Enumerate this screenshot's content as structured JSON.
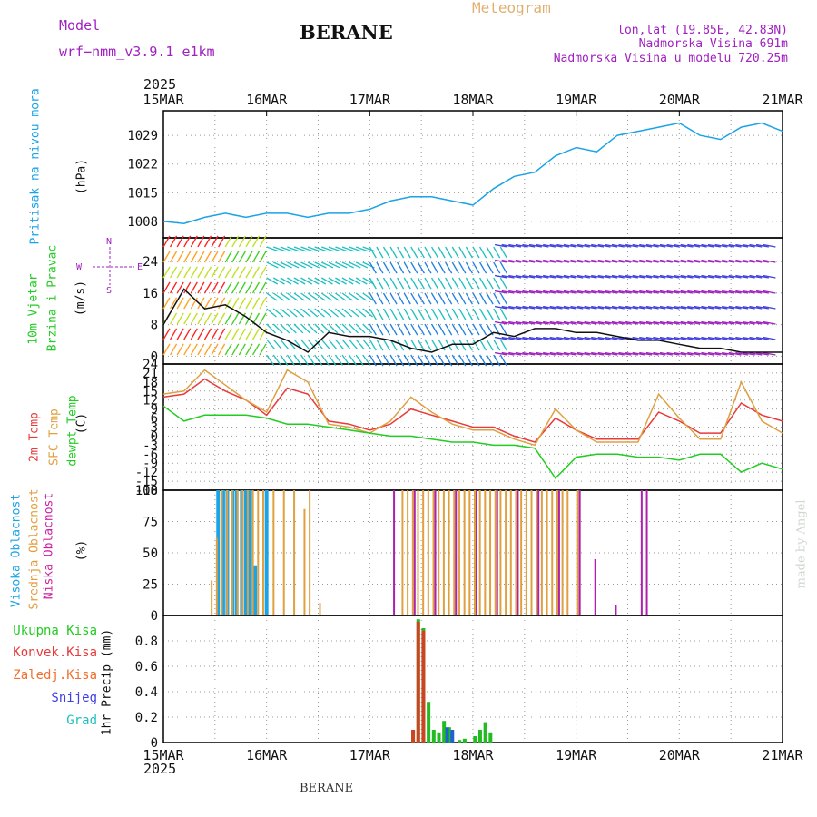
{
  "header": {
    "model_label": "Model",
    "model_name": "wrf−nmm_v3.9.1 e1km",
    "station": "BERANE",
    "meteogram": "Meteogram",
    "lonlat": "lon,lat (19.85E, 42.83N)",
    "elevation": "Nadmorska Visina 691m",
    "model_elevation": "Nadmorska Visina u modelu 720.25m"
  },
  "footer": {
    "station": "BERANE"
  },
  "watermark": "made by Angel",
  "colors": {
    "pressure": "#1aa3e6",
    "temp2m": "#e83a3a",
    "sfc": "#e0a040",
    "dew": "#22cc22",
    "purple": "#a020c0",
    "grid": "#999999"
  },
  "chart_data": [
    {
      "type": "line",
      "title": "Pritisak na nivou mora",
      "ylabel": "(hPa)",
      "year": "2025",
      "categories": [
        "15MAR",
        "16MAR",
        "17MAR",
        "18MAR",
        "19MAR",
        "20MAR",
        "21MAR"
      ],
      "yticks": [
        "1008",
        "1015",
        "1022",
        "1029"
      ],
      "ylim": [
        1004,
        1035
      ],
      "grid": true,
      "series": [
        {
          "name": "Pritisak na nivou mora",
          "x": [
            0,
            0.2,
            0.4,
            0.6,
            0.8,
            1.0,
            1.2,
            1.4,
            1.6,
            1.8,
            2.0,
            2.2,
            2.4,
            2.6,
            2.8,
            3.0,
            3.2,
            3.4,
            3.6,
            3.8,
            4.0,
            4.2,
            4.4,
            4.6,
            4.8,
            5.0,
            5.2,
            5.4,
            5.6,
            5.8,
            6.0
          ],
          "values": [
            1008,
            1007.5,
            1009,
            1010,
            1009,
            1010,
            1010,
            1009,
            1010,
            1010,
            1011,
            1013,
            1014,
            1014,
            1013,
            1012,
            1016,
            1019,
            1020,
            1024,
            1026,
            1025,
            1029,
            1030,
            1031,
            1032,
            1029,
            1028,
            1031,
            1032,
            1030
          ]
        }
      ]
    },
    {
      "type": "line",
      "title": "10m Vjetar Brzina i Pravac",
      "ylabel": "(m/s)",
      "yticks": [
        "0",
        "8",
        "16",
        "24"
      ],
      "ylim": [
        -2,
        30
      ],
      "compass": {
        "n": "N",
        "s": "S",
        "e": "E",
        "w": "W"
      },
      "series": [
        {
          "name": "Brzina",
          "x": [
            0,
            0.2,
            0.4,
            0.6,
            0.8,
            1.0,
            1.2,
            1.4,
            1.6,
            1.8,
            2.0,
            2.2,
            2.4,
            2.6,
            2.8,
            3.0,
            3.2,
            3.4,
            3.6,
            3.8,
            4.0,
            4.2,
            4.4,
            4.6,
            4.8,
            5.0,
            5.2,
            5.4,
            5.6,
            5.8,
            6.0
          ],
          "values": [
            8,
            17,
            12,
            13,
            10,
            6,
            4,
            1,
            6,
            5,
            5,
            4,
            2,
            1,
            3,
            3,
            6,
            5,
            7,
            7,
            6,
            6,
            5,
            4,
            4,
            3,
            2,
            2,
            1,
            1,
            1
          ]
        }
      ]
    },
    {
      "type": "line",
      "title": "2m Temp",
      "ylabel": "(C)",
      "yticks": [
        "-18",
        "-15",
        "-12",
        "-9",
        "-6",
        "-3",
        "0",
        "3",
        "6",
        "9",
        "12",
        "15",
        "18",
        "21",
        "24"
      ],
      "ylim": [
        -18,
        24
      ],
      "series": [
        {
          "name": "2m Temp",
          "x": [
            0,
            0.2,
            0.4,
            0.6,
            0.8,
            1.0,
            1.2,
            1.4,
            1.6,
            1.8,
            2.0,
            2.2,
            2.4,
            2.6,
            2.8,
            3.0,
            3.2,
            3.4,
            3.6,
            3.8,
            4.0,
            4.2,
            4.4,
            4.6,
            4.8,
            5.0,
            5.2,
            5.4,
            5.6,
            5.8,
            6.0
          ],
          "values": [
            13,
            14,
            19,
            15,
            12,
            7,
            16,
            14,
            5,
            4,
            2,
            4,
            9,
            7,
            5,
            3,
            3,
            0,
            -2,
            6,
            2,
            -1,
            -1,
            -1,
            8,
            5,
            1,
            1,
            11,
            7,
            5
          ]
        },
        {
          "name": "SFC Temp",
          "x": [
            0,
            0.2,
            0.4,
            0.6,
            0.8,
            1.0,
            1.2,
            1.4,
            1.6,
            1.8,
            2.0,
            2.2,
            2.4,
            2.6,
            2.8,
            3.0,
            3.2,
            3.4,
            3.6,
            3.8,
            4.0,
            4.2,
            4.4,
            4.6,
            4.8,
            5.0,
            5.2,
            5.4,
            5.6,
            5.8,
            6.0
          ],
          "values": [
            14,
            15,
            22,
            17,
            12,
            8,
            22,
            18,
            4,
            3,
            1,
            5,
            13,
            8,
            4,
            2,
            2,
            -1,
            -3,
            9,
            2,
            -2,
            -2,
            -2,
            14,
            6,
            -1,
            -1,
            18,
            5,
            1
          ]
        },
        {
          "name": "dewpt Temp",
          "x": [
            0,
            0.2,
            0.4,
            0.6,
            0.8,
            1.0,
            1.2,
            1.4,
            1.6,
            1.8,
            2.0,
            2.2,
            2.4,
            2.6,
            2.8,
            3.0,
            3.2,
            3.4,
            3.6,
            3.8,
            4.0,
            4.2,
            4.4,
            4.6,
            4.8,
            5.0,
            5.2,
            5.4,
            5.6,
            5.8,
            6.0
          ],
          "values": [
            10,
            5,
            7,
            7,
            7,
            6,
            4,
            4,
            3,
            2,
            1,
            0,
            0,
            -1,
            -2,
            -2,
            -3,
            -3,
            -4,
            -14,
            -7,
            -6,
            -6,
            -7,
            -7,
            -8,
            -6,
            -6,
            -12,
            -9,
            -11
          ]
        }
      ]
    },
    {
      "type": "bar",
      "title": "Oblacnost",
      "ylabel": "(%)",
      "yticks": [
        "0",
        "25",
        "50",
        "75",
        "100"
      ],
      "ylim": [
        0,
        100
      ],
      "series": [
        {
          "name": "Visoka Oblacnost",
          "x": [
            0.53,
            0.58,
            0.62,
            0.67,
            0.71,
            0.76,
            0.8,
            0.84,
            0.89,
            1.0
          ],
          "values": [
            100,
            100,
            100,
            100,
            100,
            100,
            100,
            100,
            40,
            100
          ]
        },
        {
          "name": "Srednja Oblacnost",
          "x": [
            0.45,
            0.5,
            0.55,
            0.6,
            0.65,
            0.7,
            0.75,
            0.8,
            0.85,
            0.9,
            0.95,
            1.05,
            1.15,
            1.25,
            1.35,
            1.4,
            1.5,
            2.3,
            2.35,
            2.4,
            2.45,
            2.5,
            2.55,
            2.6,
            2.65,
            2.7,
            2.75,
            2.8,
            2.85,
            2.9,
            2.95,
            3.0,
            3.05,
            3.1,
            3.15,
            3.2,
            3.25,
            3.3,
            3.35,
            3.4,
            3.45,
            3.5,
            3.55,
            3.6,
            3.65,
            3.7,
            3.75,
            3.8,
            3.85,
            3.9,
            4.0
          ],
          "values": [
            28,
            62,
            100,
            100,
            100,
            100,
            100,
            100,
            100,
            100,
            100,
            100,
            100,
            100,
            85,
            100,
            10,
            100,
            100,
            100,
            100,
            100,
            100,
            100,
            100,
            100,
            100,
            100,
            100,
            100,
            100,
            100,
            100,
            100,
            100,
            100,
            100,
            100,
            100,
            100,
            100,
            100,
            100,
            100,
            100,
            100,
            100,
            100,
            100,
            100,
            100
          ]
        },
        {
          "name": "Niska Oblacnost",
          "x": [
            2.2,
            2.4,
            2.6,
            2.8,
            3.0,
            3.2,
            3.4,
            3.6,
            3.8,
            4.0,
            4.15,
            4.35,
            4.6,
            4.65
          ],
          "values": [
            100,
            100,
            100,
            100,
            100,
            100,
            100,
            100,
            100,
            100,
            45,
            8,
            100,
            100
          ]
        }
      ]
    },
    {
      "type": "bar",
      "title": "1hr Precip",
      "ylabel": "(mm)",
      "yticks": [
        "0",
        "0.2",
        "0.4",
        "0.6",
        "0.8"
      ],
      "ylim": [
        0,
        1.0
      ],
      "series": [
        {
          "name": "Ukupna Kisa",
          "x": [
            2.42,
            2.47,
            2.52,
            2.57,
            2.62,
            2.67,
            2.72,
            2.77,
            2.87,
            2.92,
            3.02,
            3.07,
            3.12,
            3.17
          ],
          "values": [
            0.1,
            0.97,
            0.9,
            0.32,
            0.1,
            0.08,
            0.17,
            0.12,
            0.02,
            0.03,
            0.05,
            0.1,
            0.16,
            0.08
          ]
        },
        {
          "name": "Konvek.Kisa",
          "x": [
            2.42,
            2.47,
            2.52
          ],
          "values": [
            0.1,
            0.95,
            0.88
          ]
        },
        {
          "name": "Zaledj.Kisa",
          "x": [],
          "values": []
        },
        {
          "name": "Snijeg",
          "x": [
            2.75,
            2.8
          ],
          "values": [
            0.12,
            0.1
          ]
        },
        {
          "name": "Grad",
          "x": [],
          "values": []
        }
      ]
    }
  ]
}
